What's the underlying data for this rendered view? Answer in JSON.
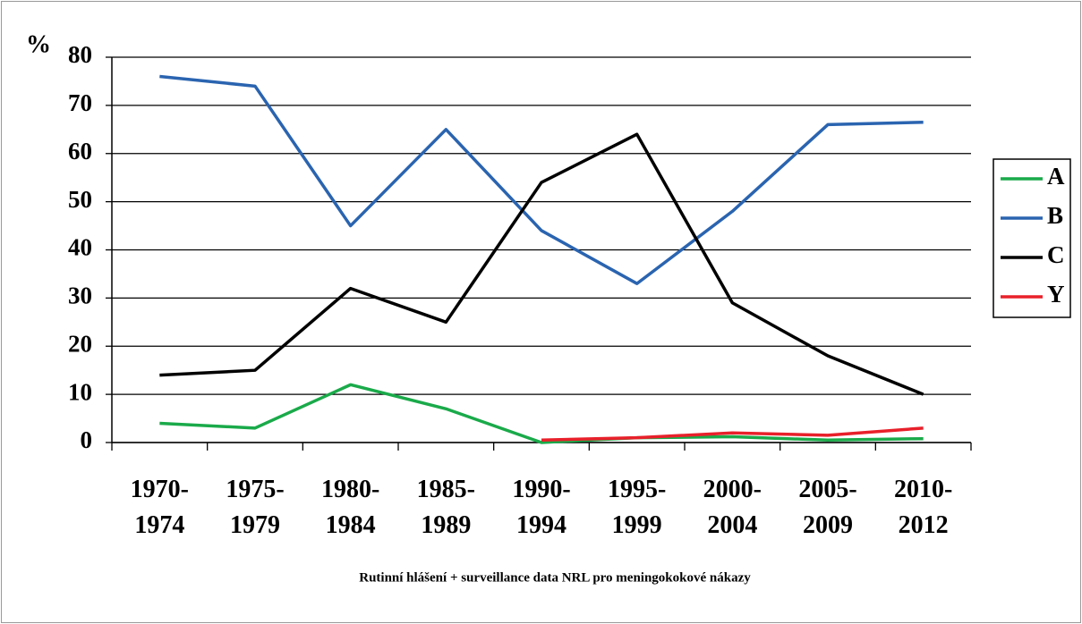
{
  "chart_data": {
    "type": "line",
    "y_label": "%",
    "footnote": "Rutinní hlášení + surveillance data NRL pro meningokokové nákazy",
    "categories": [
      "1970-\n1974",
      "1975-\n1979",
      "1980-\n1984",
      "1985-\n1989",
      "1990-\n1994",
      "1995-\n1999",
      "2000-\n2004",
      "2005-\n2009",
      "2010-\n2012"
    ],
    "series": [
      {
        "name": "A",
        "color": "#1aaa4a",
        "values": [
          4,
          3,
          12,
          7,
          0,
          1,
          1.2,
          0.5,
          0.8
        ]
      },
      {
        "name": "B",
        "color": "#2a64b0",
        "values": [
          76,
          74,
          45,
          65,
          44,
          33,
          48,
          66,
          66.5
        ]
      },
      {
        "name": "C",
        "color": "#000000",
        "values": [
          14,
          15,
          32,
          25,
          54,
          64,
          29,
          18,
          10
        ]
      },
      {
        "name": "Y",
        "color": "#e8202a",
        "values": [
          null,
          null,
          null,
          null,
          0.5,
          1,
          2,
          1.5,
          3
        ]
      }
    ],
    "ylim": [
      0,
      80
    ],
    "yticks": [
      0,
      10,
      20,
      30,
      40,
      50,
      60,
      70,
      80
    ],
    "grid": true,
    "legend": "right"
  }
}
